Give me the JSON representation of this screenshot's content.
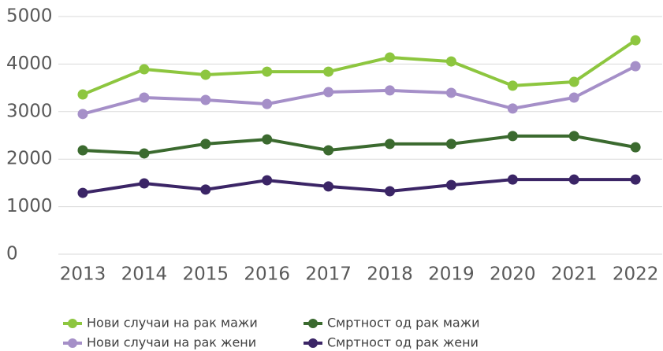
{
  "chart_data": {
    "type": "line",
    "categories": [
      "2013",
      "2014",
      "2015",
      "2016",
      "2017",
      "2018",
      "2019",
      "2020",
      "2021",
      "2022"
    ],
    "series": [
      {
        "name": "Нови случаи на рак мажи",
        "color": "#8dc63f",
        "values": [
          3360,
          3890,
          3775,
          3840,
          3840,
          4140,
          4055,
          3545,
          3625,
          4500
        ]
      },
      {
        "name": "Нови случаи на рак жени",
        "color": "#a58fc8",
        "values": [
          2950,
          3295,
          3245,
          3160,
          3410,
          3445,
          3395,
          3065,
          3295,
          3955
        ]
      },
      {
        "name": "Смртност од рак мажи",
        "color": "#3b6a2f",
        "values": [
          2185,
          2120,
          2320,
          2415,
          2185,
          2320,
          2320,
          2485,
          2485,
          2250
        ]
      },
      {
        "name": "Смртност од рак жени",
        "color": "#3b2566",
        "values": [
          1290,
          1490,
          1360,
          1555,
          1425,
          1325,
          1455,
          1570,
          1570,
          1570
        ]
      }
    ],
    "ylim": [
      0,
      5000
    ],
    "yticks": [
      0,
      1000,
      2000,
      3000,
      4000,
      5000
    ],
    "grid": true
  }
}
